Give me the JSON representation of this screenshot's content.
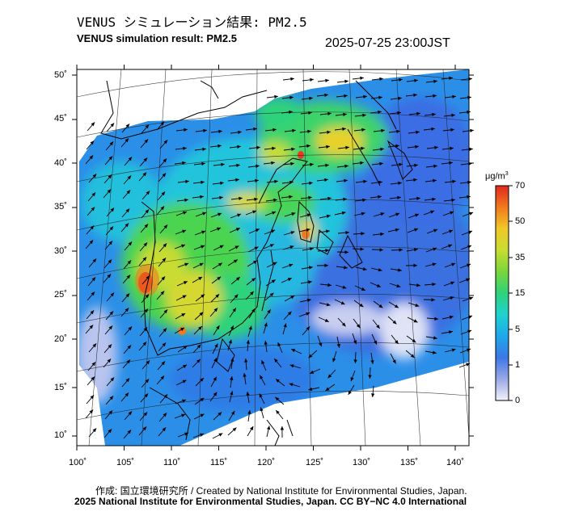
{
  "title_jp": "VENUS シミュレーション結果: PM2.5",
  "title_en": "VENUS simulation result: PM2.5",
  "timestamp": "2025-07-25 23:00JST",
  "colorbar": {
    "unit_main": "μg/m",
    "unit_sup": "3",
    "ticks": [
      "70",
      "50",
      "35",
      "15",
      "5",
      "1",
      "0"
    ],
    "colors": [
      "#f2f2fb",
      "#9aa8e6",
      "#3b78e6",
      "#1ea8ea",
      "#20d2d0",
      "#2fd27a",
      "#7ad63a",
      "#c8dc32",
      "#f0c828",
      "#f07a1e",
      "#e0281e"
    ]
  },
  "axes": {
    "lon_labels": [
      "100˚",
      "105˚",
      "110˚",
      "115˚",
      "120˚",
      "125˚",
      "130˚",
      "135˚",
      "140˚"
    ],
    "lat_labels": [
      "50˚",
      "45˚",
      "40˚",
      "35˚",
      "30˚",
      "25˚",
      "20˚",
      "15˚",
      "10˚"
    ]
  },
  "credit_jp": "作成: 国立環境研究所 / Created by National Institute for Environmental Studies, Japan.",
  "credit_en": "2025 National Institute for Environmental Studies, Japan. CC BY−NC 4.0 International"
}
